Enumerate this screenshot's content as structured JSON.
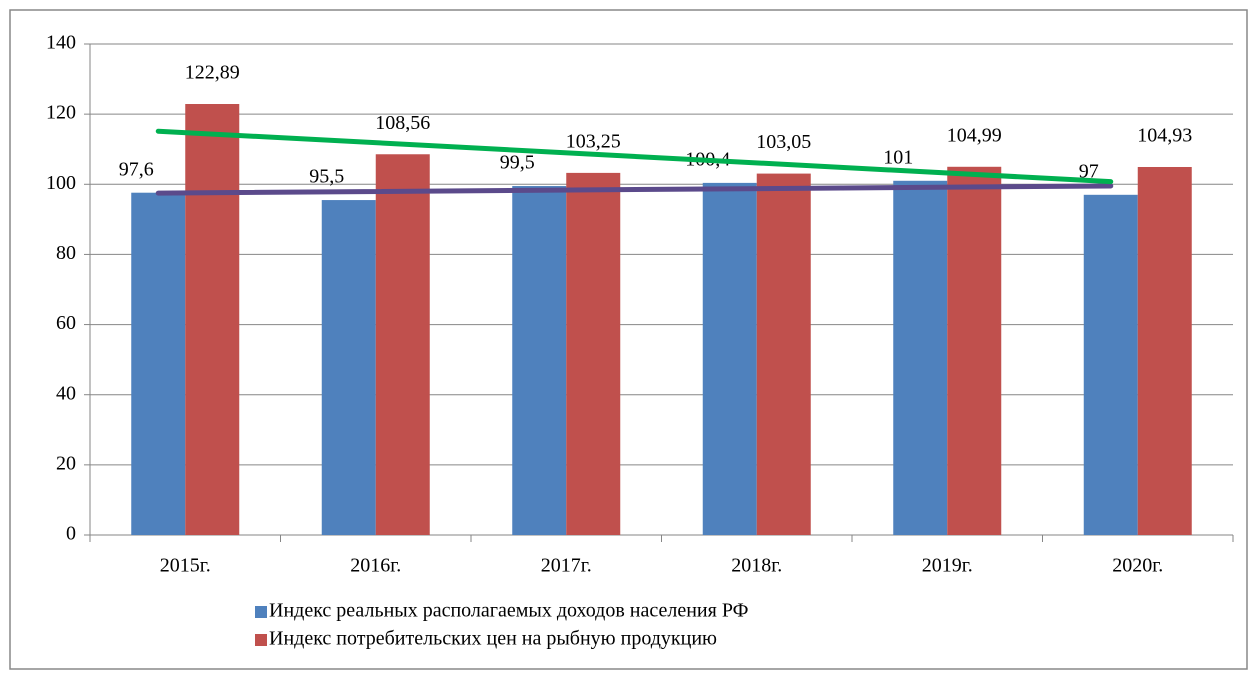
{
  "chart_data": {
    "type": "bar",
    "categories": [
      "2015г.",
      "2016г.",
      "2017г.",
      "2018г.",
      "2019г.",
      "2020г."
    ],
    "series": [
      {
        "name": "Индекс реальных располагаемых доходов населения РФ",
        "color": "#4f81bd",
        "trendline_color": "#5b4a8b",
        "values": [
          97.6,
          95.5,
          99.5,
          100.4,
          101,
          97
        ],
        "value_labels": [
          "97,6",
          "95,5",
          "99,5",
          "100,4",
          "101",
          "97"
        ]
      },
      {
        "name": "Индекс потребительских цен на рыбную продукцию",
        "color": "#c0504d",
        "trendline_color": "#00b050",
        "values": [
          122.89,
          108.56,
          103.25,
          103.05,
          104.99,
          104.93
        ],
        "value_labels": [
          "122,89",
          "108,56",
          "103,25",
          "103,05",
          "104,99",
          "104,93"
        ]
      }
    ],
    "ylim": [
      0,
      140
    ],
    "yticks": [
      0,
      20,
      40,
      60,
      80,
      100,
      120,
      140
    ],
    "grid": true,
    "trendline": true,
    "legend": "bottom"
  }
}
